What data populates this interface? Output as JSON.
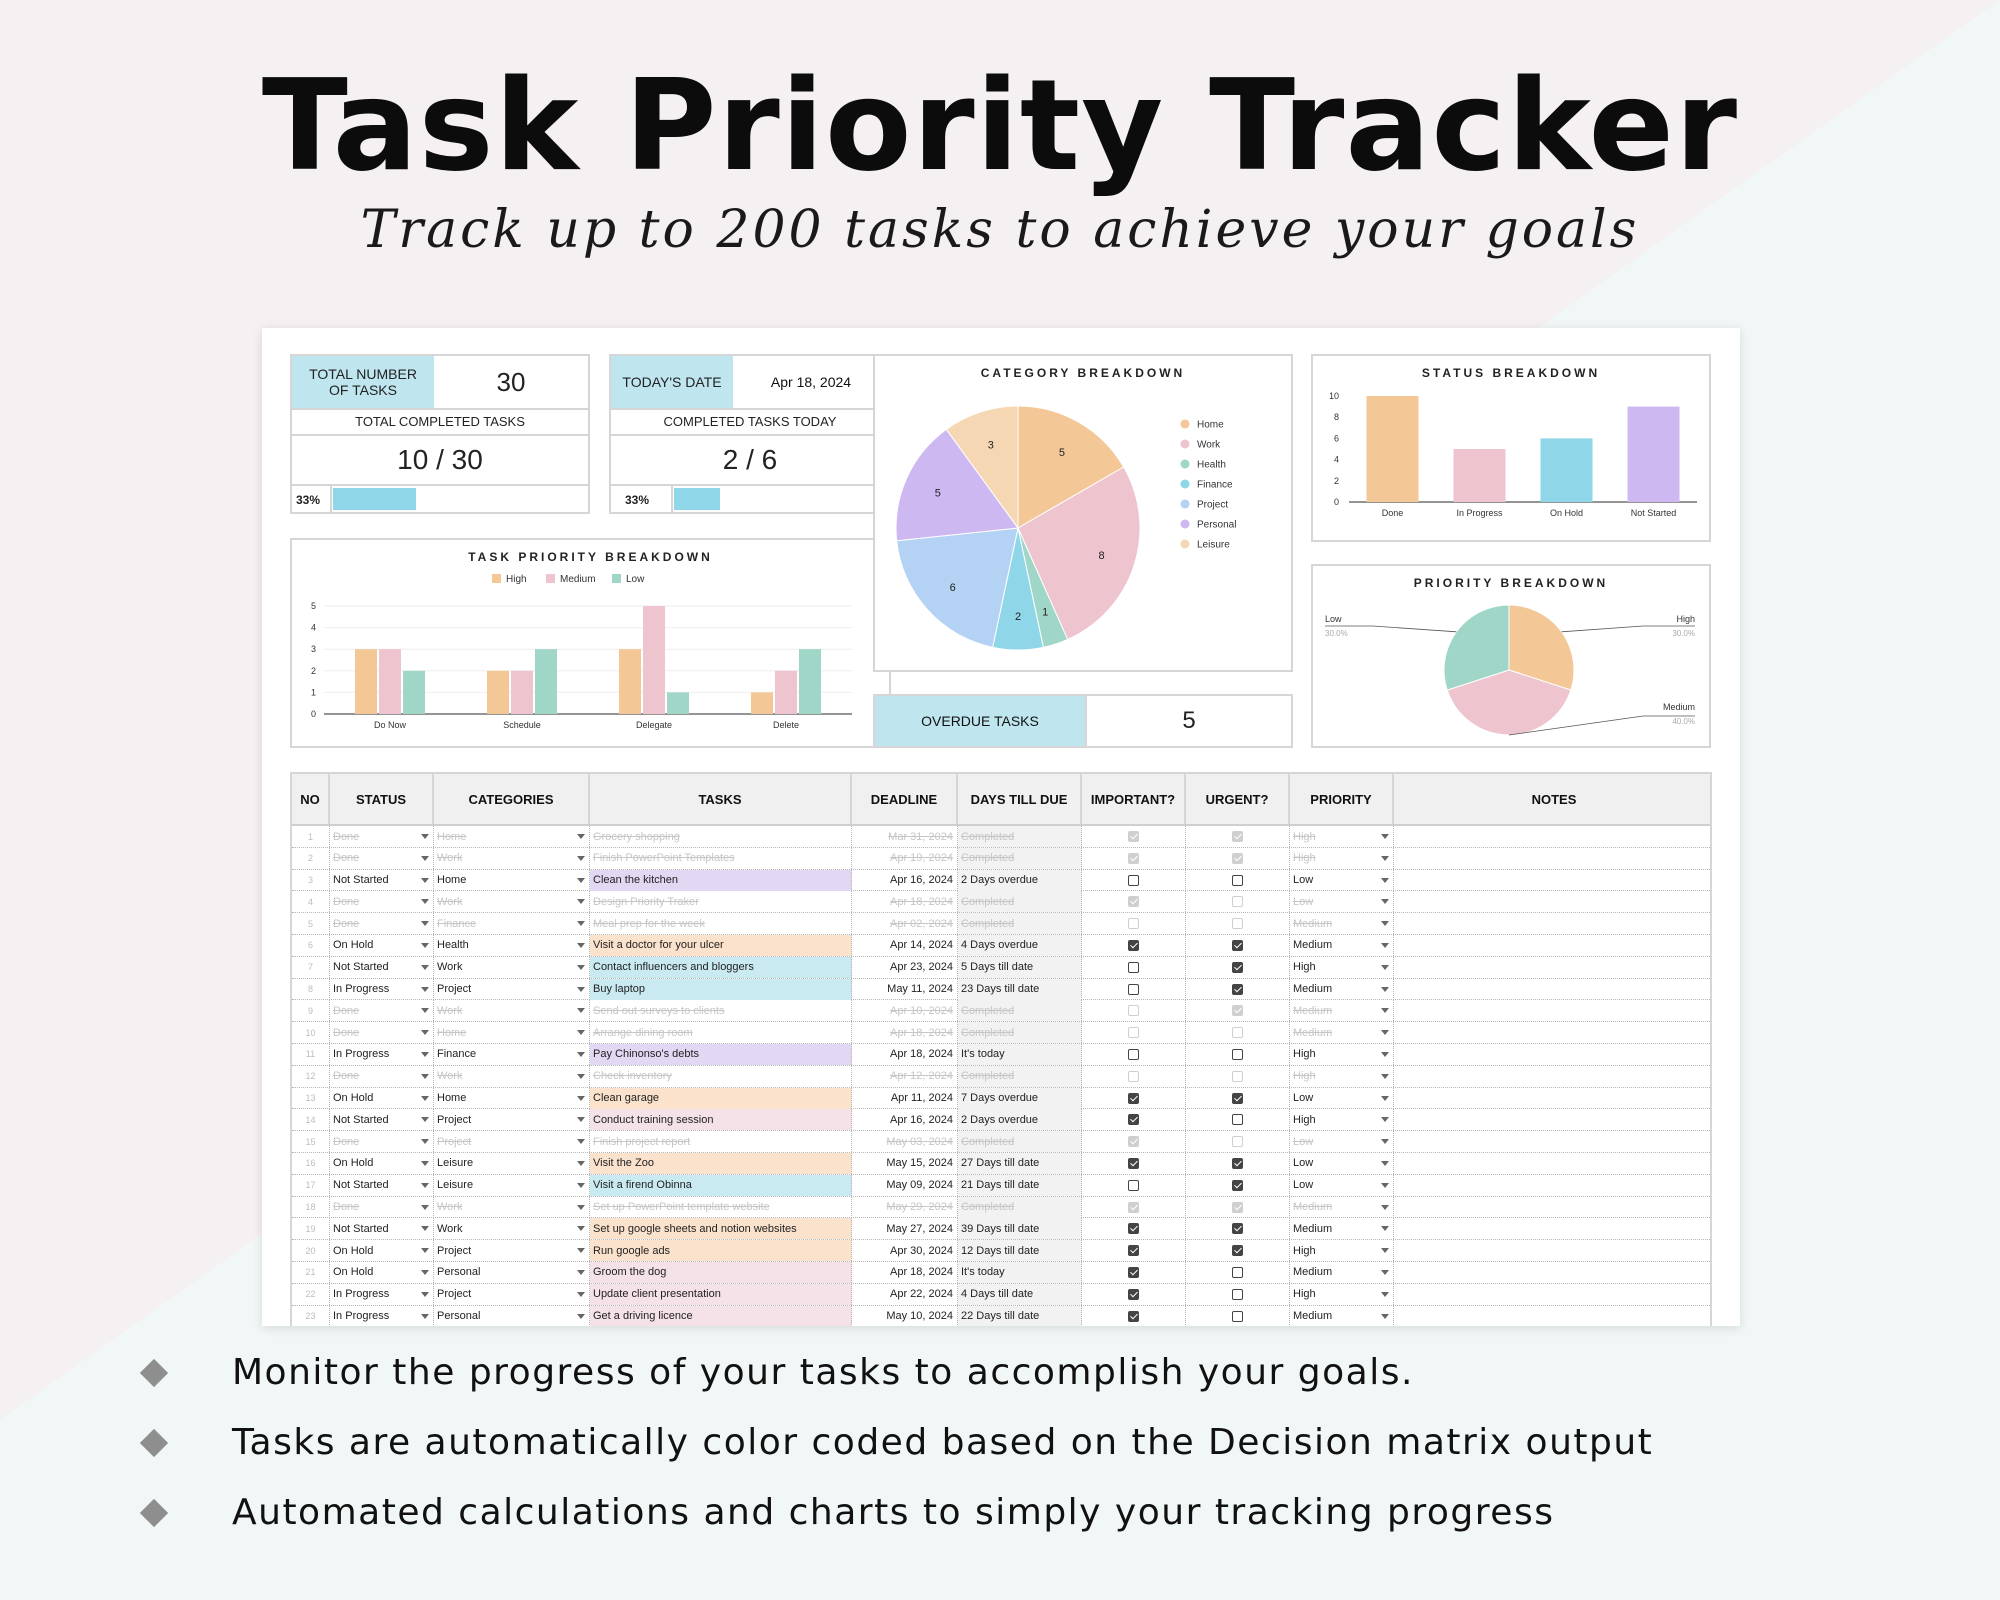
{
  "header": {
    "title": "Task Priority Tracker",
    "subtitle": "Track up to 200 tasks to achieve your goals"
  },
  "kpi": {
    "total_tasks_label": "TOTAL NUMBER OF TASKS",
    "total_tasks_value": "30",
    "total_completed_label": "TOTAL COMPLETED TASKS",
    "total_completed_value": "10 / 30",
    "total_completed_pct": "33%",
    "total_completed_fraction": 0.33,
    "todays_date_label": "TODAY'S DATE",
    "todays_date_value": "Apr 18, 2024",
    "completed_today_label": "COMPLETED TASKS TODAY",
    "completed_today_value": "2 / 6",
    "completed_today_pct": "33%",
    "completed_today_fraction": 0.33,
    "overdue_label": "OVERDUE TASKS",
    "overdue_value": "5"
  },
  "colors": {
    "home": "#f3c896",
    "work": "#eec4cf",
    "health": "#9fd6c8",
    "finance": "#8fd7e8",
    "project": "#b4d2f3",
    "personal": "#cdb8f2",
    "leisure": "#f6d7b3",
    "high": "#f3c896",
    "medium": "#eec4cf",
    "low": "#9fd6c8"
  },
  "chart_data": [
    {
      "type": "bar",
      "title": "TASK PRIORITY BREAKDOWN",
      "categories": [
        "Do Now",
        "Schedule",
        "Delegate",
        "Delete"
      ],
      "series": [
        {
          "name": "High",
          "values": [
            3,
            2,
            3,
            1
          ]
        },
        {
          "name": "Medium",
          "values": [
            3,
            2,
            5,
            2
          ]
        },
        {
          "name": "Low",
          "values": [
            2,
            3,
            1,
            3
          ]
        }
      ],
      "yticks": [
        "0",
        "1",
        "2",
        "3",
        "4",
        "5"
      ],
      "ylim": [
        0,
        5
      ],
      "legend": "top"
    },
    {
      "type": "pie",
      "title": "CATEGORY BREAKDOWN",
      "labels": [
        "Home",
        "Work",
        "Health",
        "Finance",
        "Project",
        "Personal",
        "Leisure"
      ],
      "values": [
        5,
        8,
        1,
        2,
        6,
        5,
        3
      ],
      "legend": "right"
    },
    {
      "type": "bar",
      "title": "STATUS BREAKDOWN",
      "categories": [
        "Done",
        "In Progress",
        "On Hold",
        "Not Started"
      ],
      "values": [
        10,
        5,
        6,
        9
      ],
      "yticks": [
        "0",
        "2",
        "4",
        "6",
        "8",
        "10"
      ],
      "ylim": [
        0,
        10
      ]
    },
    {
      "type": "pie",
      "title": "PRIORITY BREAKDOWN",
      "labels": [
        "High",
        "Medium",
        "Low"
      ],
      "pct_labels": [
        "30.0%",
        "40.0%",
        "30.0%"
      ],
      "values": [
        30,
        40,
        30
      ]
    }
  ],
  "table": {
    "headers": [
      "NO",
      "STATUS",
      "CATEGORIES",
      "TASKS",
      "DEADLINE",
      "DAYS TILL DUE",
      "IMPORTANT?",
      "URGENT?",
      "PRIORITY",
      "NOTES"
    ],
    "rows": [
      {
        "no": "1",
        "status": "Done",
        "category": "Home",
        "task": "Grocery shopping",
        "deadline": "Mar 31, 2024",
        "due": "Completed",
        "imp": true,
        "urg": true,
        "priority": "High",
        "done": true,
        "tint": ""
      },
      {
        "no": "2",
        "status": "Done",
        "category": "Work",
        "task": "Finish PowerPoint Templates",
        "deadline": "Apr 19, 2024",
        "due": "Completed",
        "imp": true,
        "urg": true,
        "priority": "High",
        "done": true,
        "tint": ""
      },
      {
        "no": "3",
        "status": "Not Started",
        "category": "Home",
        "task": "Clean the kitchen",
        "deadline": "Apr 16, 2024",
        "due": "2 Days overdue",
        "imp": false,
        "urg": false,
        "priority": "Low",
        "done": false,
        "tint": "#e2d8f3"
      },
      {
        "no": "4",
        "status": "Done",
        "category": "Work",
        "task": "Design Priority Traker",
        "deadline": "Apr 18, 2024",
        "due": "Completed",
        "imp": true,
        "urg": false,
        "priority": "Low",
        "done": true,
        "tint": ""
      },
      {
        "no": "5",
        "status": "Done",
        "category": "Finance",
        "task": "Meal prep for the week",
        "deadline": "Apr 02, 2024",
        "due": "Completed",
        "imp": false,
        "urg": false,
        "priority": "Medium",
        "done": true,
        "tint": ""
      },
      {
        "no": "6",
        "status": "On Hold",
        "category": "Health",
        "task": "Visit a doctor for your ulcer",
        "deadline": "Apr 14, 2024",
        "due": "4 Days overdue",
        "imp": true,
        "urg": true,
        "priority": "Medium",
        "done": false,
        "tint": "#fbe2cc"
      },
      {
        "no": "7",
        "status": "Not Started",
        "category": "Work",
        "task": "Contact influencers and bloggers",
        "deadline": "Apr 23, 2024",
        "due": "5 Days till date",
        "imp": false,
        "urg": true,
        "priority": "High",
        "done": false,
        "tint": "#c9eaf1"
      },
      {
        "no": "8",
        "status": "In Progress",
        "category": "Project",
        "task": "Buy laptop",
        "deadline": "May 11, 2024",
        "due": "23 Days till date",
        "imp": false,
        "urg": true,
        "priority": "Medium",
        "done": false,
        "tint": "#c9eaf1"
      },
      {
        "no": "9",
        "status": "Done",
        "category": "Work",
        "task": "Send out surveys to clients",
        "deadline": "Apr 10, 2024",
        "due": "Completed",
        "imp": false,
        "urg": true,
        "priority": "Medium",
        "done": true,
        "tint": ""
      },
      {
        "no": "10",
        "status": "Done",
        "category": "Home",
        "task": "Arrange dining room",
        "deadline": "Apr 18, 2024",
        "due": "Completed",
        "imp": false,
        "urg": false,
        "priority": "Medium",
        "done": true,
        "tint": ""
      },
      {
        "no": "11",
        "status": "In Progress",
        "category": "Finance",
        "task": "Pay Chinonso's debts",
        "deadline": "Apr 18, 2024",
        "due": "It's today",
        "imp": false,
        "urg": false,
        "priority": "High",
        "done": false,
        "tint": "#e2d8f3"
      },
      {
        "no": "12",
        "status": "Done",
        "category": "Work",
        "task": "Check inventory",
        "deadline": "Apr 12, 2024",
        "due": "Completed",
        "imp": false,
        "urg": false,
        "priority": "High",
        "done": true,
        "tint": ""
      },
      {
        "no": "13",
        "status": "On Hold",
        "category": "Home",
        "task": "Clean garage",
        "deadline": "Apr 11, 2024",
        "due": "7 Days overdue",
        "imp": true,
        "urg": true,
        "priority": "Low",
        "done": false,
        "tint": "#fbe2cc"
      },
      {
        "no": "14",
        "status": "Not Started",
        "category": "Project",
        "task": "Conduct training session",
        "deadline": "Apr 16, 2024",
        "due": "2 Days overdue",
        "imp": true,
        "urg": false,
        "priority": "High",
        "done": false,
        "tint": "#f5e1e8"
      },
      {
        "no": "15",
        "status": "Done",
        "category": "Project",
        "task": "Finish project report",
        "deadline": "May 03, 2024",
        "due": "Completed",
        "imp": true,
        "urg": false,
        "priority": "Low",
        "done": true,
        "tint": ""
      },
      {
        "no": "16",
        "status": "On Hold",
        "category": "Leisure",
        "task": "Visit the Zoo",
        "deadline": "May 15, 2024",
        "due": "27 Days till date",
        "imp": true,
        "urg": true,
        "priority": "Low",
        "done": false,
        "tint": "#fbe2cc"
      },
      {
        "no": "17",
        "status": "Not Started",
        "category": "Leisure",
        "task": "Visit a firend Obinna",
        "deadline": "May 09, 2024",
        "due": "21 Days till date",
        "imp": false,
        "urg": true,
        "priority": "Low",
        "done": false,
        "tint": "#c9eaf1"
      },
      {
        "no": "18",
        "status": "Done",
        "category": "Work",
        "task": "Set up PowerPoint template website",
        "deadline": "May 29, 2024",
        "due": "Completed",
        "imp": true,
        "urg": true,
        "priority": "Medium",
        "done": true,
        "tint": ""
      },
      {
        "no": "19",
        "status": "Not Started",
        "category": "Work",
        "task": "Set up google sheets and notion websites",
        "deadline": "May 27, 2024",
        "due": "39 Days till date",
        "imp": true,
        "urg": true,
        "priority": "Medium",
        "done": false,
        "tint": "#fbe2cc"
      },
      {
        "no": "20",
        "status": "On Hold",
        "category": "Project",
        "task": "Run google ads",
        "deadline": "Apr 30, 2024",
        "due": "12 Days till date",
        "imp": true,
        "urg": true,
        "priority": "High",
        "done": false,
        "tint": "#fbe2cc"
      },
      {
        "no": "21",
        "status": "On Hold",
        "category": "Personal",
        "task": "Groom the dog",
        "deadline": "Apr 18, 2024",
        "due": "It's today",
        "imp": true,
        "urg": false,
        "priority": "Medium",
        "done": false,
        "tint": "#f5e1e8"
      },
      {
        "no": "22",
        "status": "In Progress",
        "category": "Project",
        "task": "Update client presentation",
        "deadline": "Apr 22, 2024",
        "due": "4 Days till date",
        "imp": true,
        "urg": false,
        "priority": "High",
        "done": false,
        "tint": "#f5e1e8"
      },
      {
        "no": "23",
        "status": "In Progress",
        "category": "Personal",
        "task": "Get a driving licence",
        "deadline": "May 10, 2024",
        "due": "22 Days till date",
        "imp": true,
        "urg": false,
        "priority": "Medium",
        "done": false,
        "tint": "#f5e1e8"
      }
    ]
  },
  "bullets": [
    "Monitor the progress of your tasks to accomplish your goals.",
    "Tasks are automatically color coded based on the Decision matrix output",
    "Automated calculations and charts to simply your tracking progress"
  ]
}
